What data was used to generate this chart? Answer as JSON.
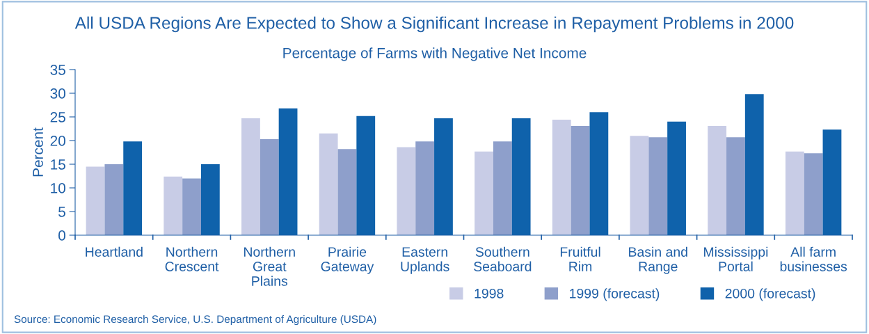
{
  "chart_data": {
    "type": "bar",
    "title": "All USDA Regions Are Expected to Show a Significant Increase in Repayment Problems in 2000",
    "subtitle": "Percentage of Farms with Negative Net Income",
    "ylabel": "Percent",
    "categories": [
      "Heartland",
      "Northern\nCrescent",
      "Northern\nGreat\nPlains",
      "Prairie\nGateway",
      "Eastern\nUplands",
      "Southern\nSeaboard",
      "Fruitful\nRim",
      "Basin and\nRange",
      "Mississippi\nPortal",
      "All farm\nbusinesses"
    ],
    "series": [
      {
        "name": "1998",
        "color": "#c8cce6",
        "values": [
          14.5,
          12.4,
          24.7,
          21.5,
          18.6,
          17.7,
          24.4,
          21.0,
          23.1,
          17.7
        ]
      },
      {
        "name": "1999 (forecast)",
        "color": "#8e9fcb",
        "values": [
          15.0,
          12.0,
          20.3,
          18.2,
          19.8,
          19.8,
          23.1,
          20.7,
          20.7,
          17.3
        ]
      },
      {
        "name": "2000 (forecast)",
        "color": "#0f62ab",
        "values": [
          19.8,
          15.0,
          26.8,
          25.2,
          24.7,
          24.7,
          26.0,
          24.0,
          29.8,
          22.3
        ]
      }
    ],
    "ylim": [
      0,
      35
    ],
    "yticks": [
      0,
      5,
      10,
      15,
      20,
      25,
      30,
      35
    ],
    "grid": false,
    "legend": "bottom right",
    "annotations": [
      "Source: Economic Research Service, U.S. Department of Agriculture (USDA)"
    ]
  }
}
